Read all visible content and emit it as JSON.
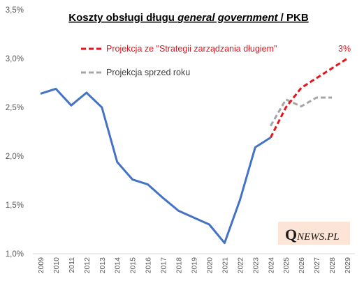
{
  "chart_data": {
    "type": "line",
    "title": {
      "part1": "Koszty obsługi długu ",
      "part2": "general government",
      "part3": "  / PKB"
    },
    "categories": [
      "2009",
      "2010",
      "2011",
      "2012",
      "2013",
      "2014",
      "2015",
      "2016",
      "2017",
      "2018",
      "2019",
      "2020",
      "2021",
      "2022",
      "2023",
      "2024",
      "2025",
      "2026",
      "2027",
      "2028",
      "2029"
    ],
    "y_ticks": [
      "1,0%",
      "1,5%",
      "2,0%",
      "2,5%",
      "3,0%",
      "3,5%"
    ],
    "ylim": [
      1.0,
      3.5
    ],
    "grid": false,
    "legend_position": "top-right",
    "series": [
      {
        "values": [
          2.64,
          2.69,
          2.52,
          2.65,
          2.5,
          1.94,
          1.76,
          1.71,
          1.57,
          1.44,
          1.37,
          1.3,
          1.11,
          1.55,
          2.09,
          2.19,
          null,
          null,
          null,
          null,
          null
        ],
        "color": "#4472c4",
        "style": "solid"
      },
      {
        "name": "Projekcja ze \"Strategii zarządzania długiem\"",
        "values": [
          null,
          null,
          null,
          null,
          null,
          null,
          null,
          null,
          null,
          null,
          null,
          null,
          null,
          null,
          null,
          2.19,
          2.5,
          2.7,
          2.8,
          2.9,
          3.0
        ],
        "color": "#e8141c",
        "style": "dashed"
      },
      {
        "name": "Projekcja sprzed roku",
        "values": [
          null,
          null,
          null,
          null,
          null,
          null,
          null,
          null,
          null,
          null,
          null,
          null,
          null,
          null,
          null,
          2.31,
          2.58,
          2.51,
          2.6,
          2.6,
          null
        ],
        "color": "#a5a5a5",
        "style": "dashed"
      }
    ],
    "annotation": "3%",
    "watermark": "QNEWS.PL",
    "watermark_bg": "#fce4d6"
  }
}
